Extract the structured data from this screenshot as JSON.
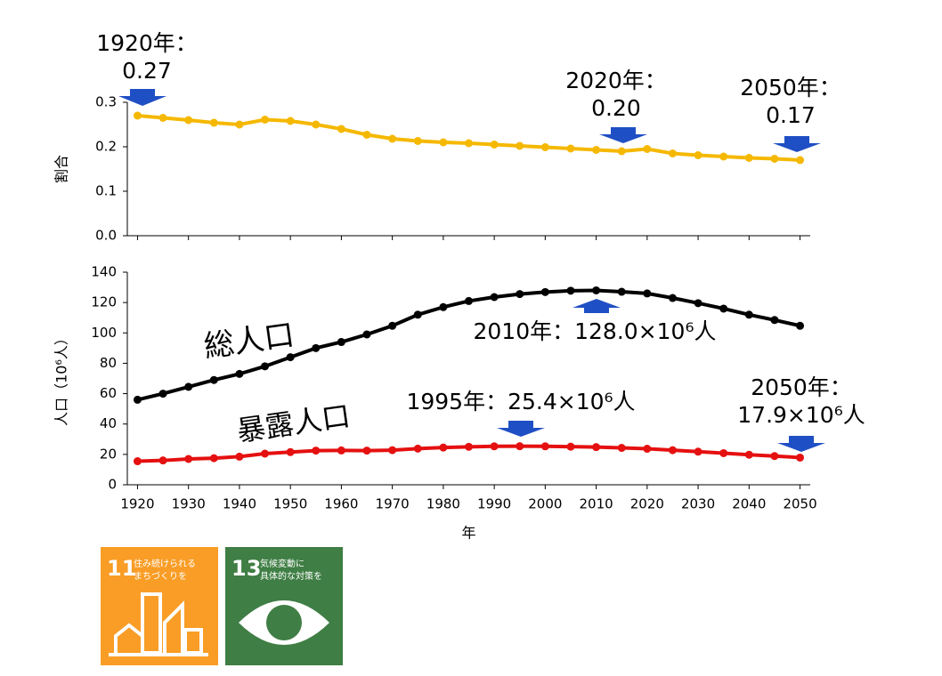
{
  "chart_data": [
    {
      "type": "line",
      "ylabel": "割合",
      "color": "#f5b800",
      "x": [
        1920,
        1925,
        1930,
        1935,
        1940,
        1945,
        1950,
        1955,
        1960,
        1965,
        1970,
        1975,
        1980,
        1985,
        1990,
        1995,
        2000,
        2005,
        2010,
        2015,
        2020,
        2025,
        2030,
        2035,
        2040,
        2045,
        2050
      ],
      "values": [
        0.27,
        0.265,
        0.26,
        0.254,
        0.25,
        0.261,
        0.258,
        0.25,
        0.24,
        0.227,
        0.218,
        0.213,
        0.21,
        0.208,
        0.205,
        0.202,
        0.199,
        0.196,
        0.193,
        0.19,
        0.195,
        0.185,
        0.181,
        0.178,
        0.175,
        0.173,
        0.17
      ],
      "xlim": [
        1918,
        2052
      ],
      "xticks": [
        1920,
        1930,
        1940,
        1950,
        1960,
        1970,
        1980,
        1990,
        2000,
        2010,
        2020,
        2030,
        2040,
        2050
      ],
      "ylim": [
        0,
        0.3
      ],
      "yticks": [
        {
          "value": 0,
          "label": "0.0"
        },
        0.1,
        0.2,
        0.3
      ],
      "annotations": [
        {
          "lines": [
            "1920年：",
            "0.27"
          ]
        },
        {
          "lines": [
            "2020年：",
            "0.20"
          ]
        },
        {
          "lines": [
            "2050年：",
            "0.17"
          ]
        }
      ]
    },
    {
      "type": "line",
      "ylabel": "人口（10⁶人）",
      "xlabel": "年",
      "x": [
        1920,
        1925,
        1930,
        1935,
        1940,
        1945,
        1950,
        1955,
        1960,
        1965,
        1970,
        1975,
        1980,
        1985,
        1990,
        1995,
        2000,
        2005,
        2010,
        2015,
        2020,
        2025,
        2030,
        2035,
        2040,
        2045,
        2050
      ],
      "series": [
        {
          "name": "総人口",
          "color": "#000000",
          "values": [
            56,
            60,
            64.5,
            69,
            73,
            78,
            84,
            90,
            94,
            99,
            104.7,
            112,
            117,
            121,
            123.6,
            125.6,
            126.9,
            127.8,
            128.0,
            127.1,
            126,
            123,
            119.6,
            116,
            112,
            108.5,
            104.7
          ]
        },
        {
          "name": "暴露人口",
          "color": "#e51010",
          "values": [
            15.5,
            16,
            17,
            17.5,
            18.5,
            20.5,
            21.5,
            22.5,
            22.6,
            22.5,
            22.8,
            23.8,
            24.5,
            25,
            25.3,
            25.4,
            25.3,
            25.1,
            24.8,
            24.3,
            23.7,
            22.8,
            21.8,
            20.8,
            19.8,
            18.9,
            17.9
          ]
        }
      ],
      "xlim": [
        1918,
        2052
      ],
      "xticks": [
        1920,
        1930,
        1940,
        1950,
        1960,
        1970,
        1980,
        1990,
        2000,
        2010,
        2020,
        2030,
        2040,
        2050
      ],
      "ylim": [
        0,
        140
      ],
      "yticks": [
        0,
        20,
        40,
        60,
        80,
        100,
        120,
        140
      ],
      "annotations": [
        {
          "lines": [
            "2010年：128.0×10⁶人"
          ]
        },
        {
          "lines": [
            "1995年：25.4×10⁶人"
          ]
        },
        {
          "lines": [
            "2050年：",
            "17.9×10⁶人"
          ]
        }
      ]
    }
  ],
  "icons": [
    {
      "number": "11",
      "lines": [
        "住み続けられる",
        "まちづくりを"
      ]
    },
    {
      "number": "13",
      "lines": [
        "気候変動に",
        "具体的な対策を"
      ]
    }
  ]
}
